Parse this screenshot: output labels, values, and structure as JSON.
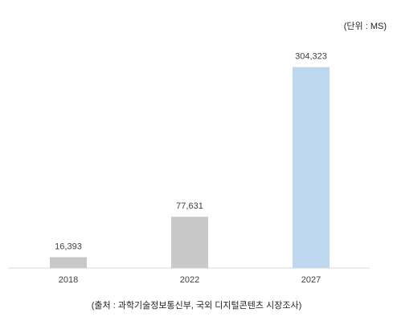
{
  "unit_label": "(단위 : MS)",
  "source_label": "(출처 : 과학기술정보통신부, 국외 디지털콘텐츠 시장조사)",
  "chart_data": {
    "type": "bar",
    "categories": [
      "2018",
      "2022",
      "2027"
    ],
    "values": [
      16393,
      77631,
      304323
    ],
    "value_labels": [
      "16,393",
      "77,631",
      "304,323"
    ],
    "bar_colors": [
      "#c8c8c8",
      "#c8c8c8",
      "#bdd7ee"
    ],
    "ylim": [
      0,
      350000
    ],
    "grid": false,
    "title": "",
    "xlabel": "",
    "ylabel": ""
  }
}
